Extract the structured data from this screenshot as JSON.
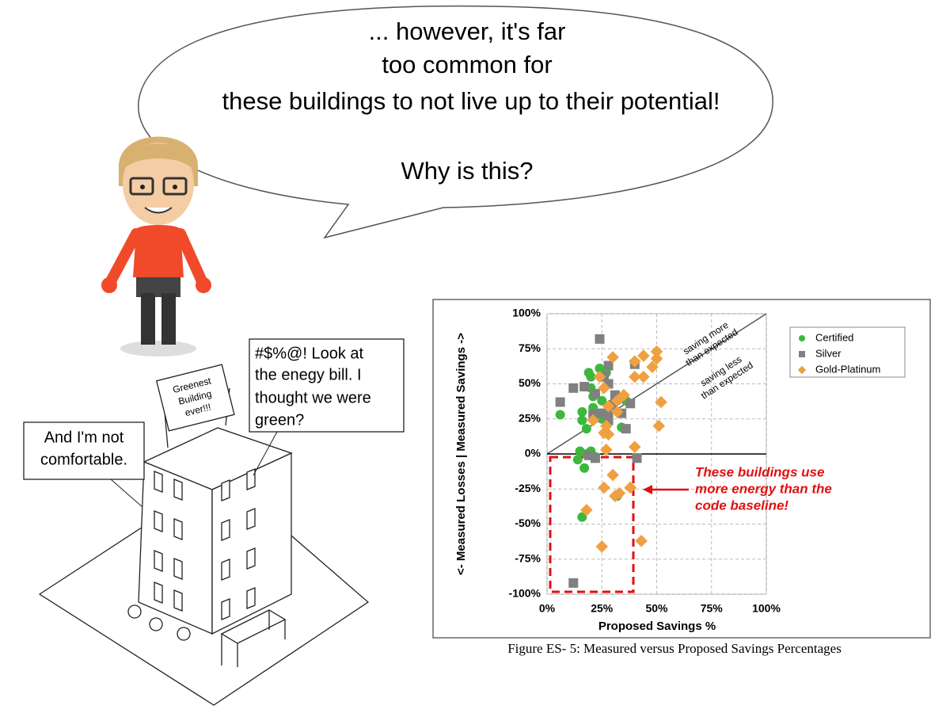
{
  "speech": {
    "lines": [
      "... however, it's far",
      "too common for",
      "these buildings to not live up to their potential!",
      "Why is this?"
    ]
  },
  "callouts": {
    "bill": [
      "#$%@! Look at",
      "the enegy bill. I",
      "thought we were",
      "green?"
    ],
    "comfort": [
      "And I'm not",
      "comfortable."
    ]
  },
  "sign": [
    "Greenest",
    "Building",
    "ever!!!"
  ],
  "chart_data": {
    "type": "scatter",
    "xlabel": "Proposed Savings %",
    "ylabel": "<- Measured Losses | Measured Savings ->",
    "caption": "Figure ES- 5: Measured versus Proposed Savings Percentages",
    "annotations": {
      "above": [
        "saving more",
        "than expected"
      ],
      "below": [
        "saving less",
        "than expected"
      ],
      "callout": [
        "These buildings use",
        "more energy than the",
        "code baseline!"
      ]
    },
    "xlim": [
      0,
      100
    ],
    "ylim": [
      -100,
      100
    ],
    "xticks": [
      {
        "value": 0,
        "label": "0%"
      },
      {
        "value": 25,
        "label": "25%"
      },
      {
        "value": 50,
        "label": "50%"
      },
      {
        "value": 75,
        "label": "75%"
      },
      {
        "value": 100,
        "label": "100%"
      }
    ],
    "yticks": [
      {
        "value": -100,
        "label": "-100%"
      },
      {
        "value": -75,
        "label": "-75%"
      },
      {
        "value": -50,
        "label": "-50%"
      },
      {
        "value": -25,
        "label": "-25%"
      },
      {
        "value": 0,
        "label": "0%"
      },
      {
        "value": 25,
        "label": "25%"
      },
      {
        "value": 50,
        "label": "50%"
      },
      {
        "value": 75,
        "label": "75%"
      },
      {
        "value": 100,
        "label": "100%"
      }
    ],
    "grid": true,
    "legend": "upper right",
    "series": [
      {
        "name": "Certified",
        "color": "#3cb83c",
        "marker": "circle",
        "x": [
          6,
          16,
          19,
          20,
          24,
          20,
          21,
          25,
          27,
          16,
          18,
          21,
          25,
          30,
          34,
          32,
          36,
          20,
          14,
          17,
          18,
          32,
          16,
          15,
          22
        ],
        "y": [
          28,
          24,
          58,
          55,
          61,
          47,
          41,
          38,
          58,
          30,
          18,
          33,
          25,
          36,
          19,
          38,
          38,
          2,
          -4,
          -10,
          0,
          -30,
          -45,
          2,
          -2
        ]
      },
      {
        "name": "Silver",
        "color": "#808080",
        "marker": "square",
        "x": [
          6,
          17,
          12,
          24,
          28,
          22,
          26,
          28,
          31,
          30,
          25,
          21,
          28,
          34,
          38,
          40,
          19,
          41,
          22,
          12,
          36,
          28
        ],
        "y": [
          37,
          48,
          47,
          82,
          63,
          43,
          55,
          50,
          42,
          35,
          29,
          28,
          24,
          29,
          36,
          64,
          -1,
          -3,
          -3,
          -92,
          18,
          28
        ]
      },
      {
        "name": "Gold-Platinum",
        "color": "#f0a040",
        "marker": "diamond",
        "x": [
          24,
          30,
          40,
          44,
          50,
          26,
          32,
          28,
          35,
          40,
          44,
          48,
          50,
          32,
          27,
          26,
          28,
          21,
          40,
          52,
          51,
          27,
          30,
          26,
          33,
          31,
          18,
          25,
          43,
          38
        ],
        "y": [
          55,
          69,
          66,
          70,
          73,
          47,
          38,
          34,
          42,
          55,
          55,
          62,
          68,
          30,
          20,
          15,
          14,
          24,
          5,
          37,
          20,
          3,
          -15,
          -24,
          -28,
          -30,
          -40,
          -66,
          -62,
          -24
        ]
      }
    ]
  }
}
